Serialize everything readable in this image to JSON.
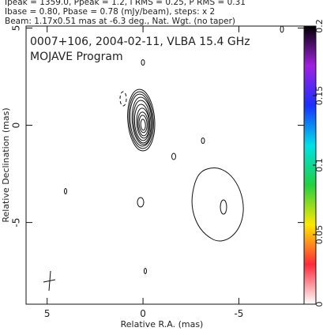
{
  "chart_data": {
    "type": "contour",
    "header": [
      "Ipeak = 1359.0, Ppeak = 1.2, I RMS = 0.25, P RMS = 0.31",
      "Ibase = 0.80, Pbase = 0.78 (mJy/beam), steps: x 2",
      "Beam: 1.17x0.51 mas at -6.3 deg., Nat. Wgt. (no taper)"
    ],
    "title": "0007+106, 2004-02-11, VLBA 15.4 GHz",
    "subtitle": "MOJAVE Program",
    "x_label": "Relative R.A. (mas)",
    "y_label": "Relative Declination (mas)",
    "xlim": [
      6.1,
      -8.4
    ],
    "xticks": [
      5,
      0,
      -5
    ],
    "ylim": [
      -9.2,
      5.1
    ],
    "yticks": [
      -5,
      0,
      5
    ],
    "colorbar": {
      "lim": [
        0,
        0.2
      ],
      "ticks": [
        0,
        0.05,
        0.1,
        0.15,
        0.2
      ],
      "colors": [
        "#ffffff",
        "#ff2a3a",
        "#ffe800",
        "#22d040",
        "#00e0e8",
        "#1830ff",
        "#a020e0",
        "#000000"
      ]
    }
  }
}
